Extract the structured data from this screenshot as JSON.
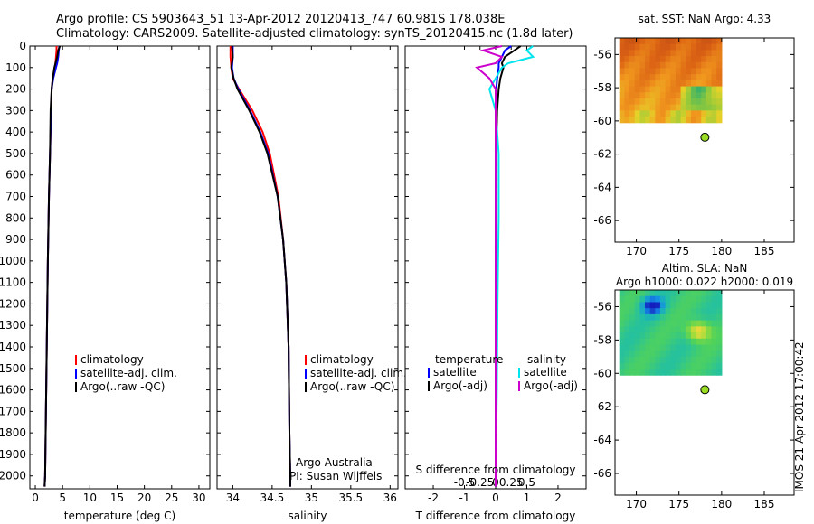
{
  "header": {
    "line1": "Argo profile: CS 5903643_51 13-Apr-2012 20120413_747 60.981S 178.038E",
    "line2": "Climatology: CARS2009. Satellite-adjusted climatology: synTS_20120415.nc (1.8d later)"
  },
  "timestamp": "IMOS 21-Apr-2012 17:00:42",
  "colors": {
    "climatology": "#ff0000",
    "satellite": "#0000ff",
    "argo": "#000000",
    "s_satellite": "#00e5ee",
    "s_argo": "#cc00cc",
    "float_marker": "#99dd22"
  },
  "chart_data": [
    {
      "type": "line",
      "panel": "temperature",
      "xlabel": "temperature (deg C)",
      "xlim": [
        -1,
        32
      ],
      "xticks": [
        0,
        5,
        10,
        15,
        20,
        25,
        30
      ],
      "ylim": [
        2060,
        0
      ],
      "yticks": [
        0,
        100,
        200,
        300,
        400,
        500,
        600,
        700,
        800,
        900,
        1000,
        1100,
        1200,
        1300,
        1400,
        1500,
        1600,
        1700,
        1800,
        1900,
        2000
      ],
      "depth": [
        0,
        20,
        50,
        80,
        100,
        150,
        200,
        300,
        500,
        700,
        1000,
        1400,
        1800,
        2000,
        2050
      ],
      "legend": [
        "climatology",
        "satellite-adj. clim.",
        "Argo(..raw -QC)"
      ],
      "series": [
        {
          "name": "climatology",
          "values": [
            3.9,
            3.9,
            3.8,
            3.7,
            3.6,
            3.2,
            3.0,
            2.9,
            2.7,
            2.5,
            2.3,
            2.1,
            1.9,
            1.8,
            1.7
          ]
        },
        {
          "name": "satellite-adj. clim.",
          "values": [
            4.4,
            4.3,
            4.2,
            4.0,
            3.8,
            3.3,
            3.0,
            2.9,
            2.7,
            2.5,
            2.3,
            2.1,
            1.9,
            1.8,
            1.7
          ]
        },
        {
          "name": "Argo(..raw -QC)",
          "values": [
            4.5,
            4.2,
            4.0,
            3.7,
            3.5,
            3.2,
            3.0,
            2.8,
            2.7,
            2.5,
            2.3,
            2.1,
            1.9,
            1.8,
            1.7
          ]
        }
      ]
    },
    {
      "type": "line",
      "panel": "salinity",
      "xlabel": "salinity",
      "xlim": [
        33.8,
        36.1
      ],
      "xticks": [
        34,
        34.5,
        35,
        35.5,
        36
      ],
      "xticklabels": [
        "34",
        "34.5",
        "35",
        "35.5",
        "36"
      ],
      "ylim": [
        2060,
        0
      ],
      "depth": [
        0,
        50,
        100,
        150,
        200,
        300,
        400,
        500,
        700,
        900,
        1100,
        1400,
        1800,
        2000,
        2050
      ],
      "legend": [
        "climatology",
        "satellite-adj. clim.",
        "Argo(..raw -QC)"
      ],
      "annotation": [
        "Argo Australia",
        "PI: Susan Wijffels"
      ],
      "series": [
        {
          "name": "climatology",
          "values": [
            33.97,
            33.97,
            33.98,
            34.0,
            34.08,
            34.25,
            34.38,
            34.47,
            34.58,
            34.64,
            34.68,
            34.71,
            34.72,
            34.73,
            34.73
          ]
        },
        {
          "name": "satellite-adj. clim.",
          "values": [
            34.0,
            34.0,
            33.99,
            34.01,
            34.07,
            34.22,
            34.35,
            34.45,
            34.57,
            34.64,
            34.68,
            34.71,
            34.72,
            34.73,
            34.73
          ]
        },
        {
          "name": "Argo(..raw -QC)",
          "values": [
            33.99,
            34.0,
            33.98,
            34.01,
            34.06,
            34.21,
            34.34,
            34.44,
            34.57,
            34.64,
            34.68,
            34.71,
            34.72,
            34.73,
            34.73
          ]
        }
      ]
    },
    {
      "type": "line",
      "panel": "difference",
      "xlabel": "T difference from climatology",
      "xlabel_top": "S difference from climatology",
      "xlim": [
        -2.9,
        2.9
      ],
      "xticks": [
        -2,
        -1,
        0,
        1,
        2
      ],
      "s_xticks": [
        -1,
        -0.5,
        0,
        0.5,
        1
      ],
      "s_xticklabels": [
        "-0.5",
        "-0.25",
        "0",
        "0.25",
        "0.5"
      ],
      "ylim": [
        2060,
        0
      ],
      "depth": [
        0,
        20,
        50,
        80,
        100,
        150,
        200,
        300,
        500,
        800,
        1200,
        1600,
        2000,
        2050
      ],
      "legend_temperature": {
        "title": "temperature",
        "items": [
          "satellite",
          "Argo(-adj)"
        ]
      },
      "legend_salinity": {
        "title": "salinity",
        "items": [
          "satellite",
          "Argo(-adj)"
        ]
      },
      "series": [
        {
          "name": "T satellite",
          "values": [
            0.5,
            0.3,
            0.2,
            0.1,
            0.1,
            0.05,
            0.02,
            0.0,
            0.0,
            0.0,
            0.0,
            0.0,
            0.0,
            0.0
          ]
        },
        {
          "name": "T Argo(-adj)",
          "values": [
            0.8,
            0.6,
            0.3,
            0.2,
            0.25,
            0.15,
            0.1,
            0.05,
            0.02,
            0.0,
            0.0,
            0.0,
            0.0,
            0.0
          ]
        },
        {
          "name": "S satellite",
          "values": [
            0.6,
            0.5,
            0.6,
            0.2,
            0.1,
            0.0,
            -0.1,
            0.0,
            0.05,
            0.05,
            0.03,
            0.02,
            0.0,
            0.0
          ]
        },
        {
          "name": "S Argo(-adj)",
          "values": [
            0.1,
            -0.2,
            0.1,
            0.0,
            -0.3,
            -0.1,
            0.0,
            0.0,
            0.0,
            0.0,
            0.0,
            0.0,
            0.0,
            0.0
          ]
        }
      ]
    },
    {
      "type": "heatmap",
      "panel": "sst_map",
      "title": "sat. SST: NaN Argo: 4.33",
      "xlim": [
        167.5,
        188.5
      ],
      "ylim": [
        -67.3,
        -55.0
      ],
      "xticks": [
        170,
        175,
        180,
        185
      ],
      "yticks": [
        -56,
        -58,
        -60,
        -62,
        -64,
        -66
      ],
      "data_lon": [
        168,
        180
      ],
      "data_lat": [
        -60.1,
        -55.0
      ],
      "float_position": {
        "lat": -60.981,
        "lon": 178.038
      }
    },
    {
      "type": "heatmap",
      "panel": "sla_map",
      "title": "Altim. SLA: NaN",
      "subtitle": "Argo h1000: 0.022 h2000: 0.019",
      "xlim": [
        167.5,
        188.5
      ],
      "ylim": [
        -67.3,
        -55.0
      ],
      "xticks": [
        170,
        175,
        180,
        185
      ],
      "yticks": [
        -56,
        -58,
        -60,
        -62,
        -64,
        -66
      ],
      "data_lon": [
        168,
        180
      ],
      "data_lat": [
        -60.1,
        -55.0
      ],
      "float_position": {
        "lat": -60.981,
        "lon": 178.038
      }
    }
  ]
}
